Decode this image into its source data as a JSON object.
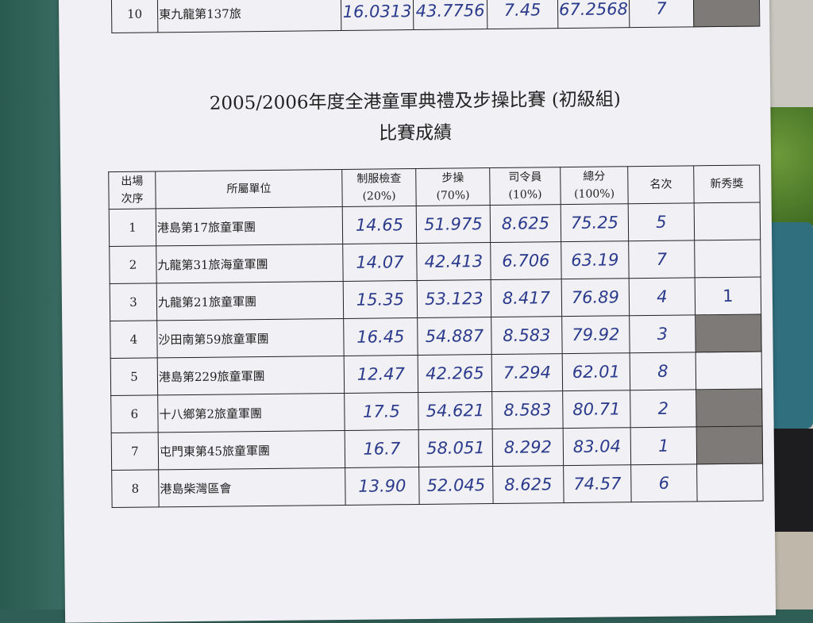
{
  "previous_row": {
    "order": "10",
    "unit": "東九龍第137旅",
    "uniform": "16.0313",
    "drill": "43.7756",
    "commander": "7.45",
    "total": "67.2568",
    "rank": "7"
  },
  "title": "2005/2006年度全港童軍典禮及步操比賽 (初級組)",
  "subtitle": "比賽成績",
  "headers": [
    {
      "l1": "出場",
      "l2": "次序"
    },
    {
      "l1": "所屬單位",
      "l2": ""
    },
    {
      "l1": "制服檢查",
      "l2": "(20%)"
    },
    {
      "l1": "步操",
      "l2": "(70%)"
    },
    {
      "l1": "司令員",
      "l2": "(10%)"
    },
    {
      "l1": "總分",
      "l2": "(100%)"
    },
    {
      "l1": "名次",
      "l2": ""
    },
    {
      "l1": "新秀獎",
      "l2": ""
    }
  ],
  "rows": [
    {
      "order": "1",
      "unit": "港島第17旅童軍團",
      "uniform": "14.65",
      "drill": "51.975",
      "commander": "8.625",
      "total": "75.25",
      "rank": "5",
      "award": "",
      "shaded": false
    },
    {
      "order": "2",
      "unit": "九龍第31旅海童軍團",
      "uniform": "14.07",
      "drill": "42.413",
      "commander": "6.706",
      "total": "63.19",
      "rank": "7",
      "award": "",
      "shaded": false
    },
    {
      "order": "3",
      "unit": "九龍第21旅童軍團",
      "uniform": "15.35",
      "drill": "53.123",
      "commander": "8.417",
      "total": "76.89",
      "rank": "4",
      "award": "1",
      "shaded": false
    },
    {
      "order": "4",
      "unit": "沙田南第59旅童軍團",
      "uniform": "16.45",
      "drill": "54.887",
      "commander": "8.583",
      "total": "79.92",
      "rank": "3",
      "award": "",
      "shaded": true
    },
    {
      "order": "5",
      "unit": "港島第229旅童軍團",
      "uniform": "12.47",
      "drill": "42.265",
      "commander": "7.294",
      "total": "62.01",
      "rank": "8",
      "award": "",
      "shaded": false
    },
    {
      "order": "6",
      "unit": "十八鄉第2旅童軍團",
      "uniform": "17.5",
      "drill": "54.621",
      "commander": "8.583",
      "total": "80.71",
      "rank": "2",
      "award": "",
      "shaded": true
    },
    {
      "order": "7",
      "unit": "屯門東第45旅童軍團",
      "uniform": "16.7",
      "drill": "58.051",
      "commander": "8.292",
      "total": "83.04",
      "rank": "1",
      "award": "",
      "shaded": true
    },
    {
      "order": "8",
      "unit": "港島柴灣區會",
      "uniform": "13.90",
      "drill": "52.045",
      "commander": "8.625",
      "total": "74.57",
      "rank": "6",
      "award": "",
      "shaded": false
    }
  ],
  "colors": {
    "ink": "#2b3b8c",
    "shade": "#7d7a78",
    "paper": "#f1f0f4"
  }
}
